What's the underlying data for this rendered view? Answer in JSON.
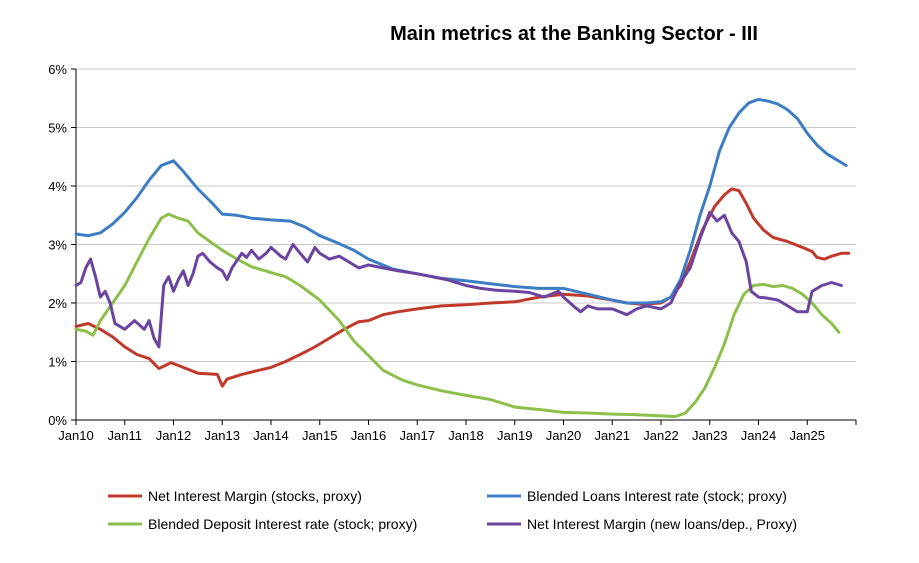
{
  "chart_data": {
    "type": "line",
    "title": "Main metrics at the Banking Sector  -  III",
    "xlabel": "",
    "ylabel": "",
    "x_ticks": [
      "Jan10",
      "Jan11",
      "Jan12",
      "Jan13",
      "Jan14",
      "Jan15",
      "Jan16",
      "Jan17",
      "Jan18",
      "Jan19",
      "Jan20",
      "Jan21",
      "Jan22",
      "Jan23",
      "Jan24",
      "Jan25"
    ],
    "y_ticks": [
      "0%",
      "1%",
      "2%",
      "3%",
      "4%",
      "5%",
      "6%"
    ],
    "xlim": [
      2010.0,
      2026.0
    ],
    "ylim": [
      0,
      6
    ],
    "grid": "horizontal",
    "legend_position": "bottom",
    "series": [
      {
        "name": "Net Interest Margin (stocks, proxy)",
        "color": "#c0392b",
        "points": [
          [
            2010.0,
            1.6
          ],
          [
            2010.25,
            1.65
          ],
          [
            2010.5,
            1.55
          ],
          [
            2010.75,
            1.42
          ],
          [
            2011.0,
            1.25
          ],
          [
            2011.25,
            1.12
          ],
          [
            2011.5,
            1.05
          ],
          [
            2011.7,
            0.88
          ],
          [
            2011.95,
            0.98
          ],
          [
            2012.2,
            0.9
          ],
          [
            2012.5,
            0.8
          ],
          [
            2012.9,
            0.78
          ],
          [
            2013.0,
            0.58
          ],
          [
            2013.1,
            0.7
          ],
          [
            2013.4,
            0.78
          ],
          [
            2013.75,
            0.85
          ],
          [
            2014.0,
            0.9
          ],
          [
            2014.3,
            1.0
          ],
          [
            2014.6,
            1.12
          ],
          [
            2014.9,
            1.25
          ],
          [
            2015.2,
            1.4
          ],
          [
            2015.5,
            1.55
          ],
          [
            2015.8,
            1.68
          ],
          [
            2016.0,
            1.7
          ],
          [
            2016.3,
            1.8
          ],
          [
            2016.6,
            1.85
          ],
          [
            2017.0,
            1.9
          ],
          [
            2017.5,
            1.95
          ],
          [
            2018.0,
            1.97
          ],
          [
            2018.5,
            2.0
          ],
          [
            2019.0,
            2.02
          ],
          [
            2019.5,
            2.1
          ],
          [
            2020.0,
            2.15
          ],
          [
            2020.5,
            2.12
          ],
          [
            2021.0,
            2.05
          ],
          [
            2021.3,
            2.0
          ],
          [
            2021.6,
            1.98
          ],
          [
            2022.0,
            2.0
          ],
          [
            2022.2,
            2.1
          ],
          [
            2022.4,
            2.3
          ],
          [
            2022.6,
            2.7
          ],
          [
            2022.85,
            3.25
          ],
          [
            2023.1,
            3.65
          ],
          [
            2023.3,
            3.85
          ],
          [
            2023.45,
            3.95
          ],
          [
            2023.6,
            3.92
          ],
          [
            2023.75,
            3.7
          ],
          [
            2023.9,
            3.45
          ],
          [
            2024.1,
            3.25
          ],
          [
            2024.3,
            3.12
          ],
          [
            2024.6,
            3.05
          ],
          [
            2024.9,
            2.95
          ],
          [
            2025.1,
            2.88
          ],
          [
            2025.2,
            2.78
          ],
          [
            2025.35,
            2.75
          ],
          [
            2025.5,
            2.8
          ],
          [
            2025.7,
            2.85
          ],
          [
            2025.85,
            2.85
          ]
        ]
      },
      {
        "name": "Blended Loans Interest rate (stock; proxy)",
        "color": "#3c7dc4",
        "points": [
          [
            2010.0,
            3.18
          ],
          [
            2010.25,
            3.15
          ],
          [
            2010.5,
            3.2
          ],
          [
            2010.75,
            3.35
          ],
          [
            2011.0,
            3.55
          ],
          [
            2011.25,
            3.8
          ],
          [
            2011.5,
            4.1
          ],
          [
            2011.75,
            4.35
          ],
          [
            2012.0,
            4.43
          ],
          [
            2012.2,
            4.25
          ],
          [
            2012.5,
            3.95
          ],
          [
            2012.8,
            3.7
          ],
          [
            2013.0,
            3.52
          ],
          [
            2013.3,
            3.5
          ],
          [
            2013.6,
            3.45
          ],
          [
            2014.0,
            3.42
          ],
          [
            2014.4,
            3.4
          ],
          [
            2014.7,
            3.3
          ],
          [
            2015.0,
            3.15
          ],
          [
            2015.3,
            3.05
          ],
          [
            2015.7,
            2.9
          ],
          [
            2016.0,
            2.75
          ],
          [
            2016.5,
            2.58
          ],
          [
            2017.0,
            2.5
          ],
          [
            2017.5,
            2.42
          ],
          [
            2018.0,
            2.38
          ],
          [
            2018.5,
            2.33
          ],
          [
            2019.0,
            2.28
          ],
          [
            2019.5,
            2.25
          ],
          [
            2020.0,
            2.25
          ],
          [
            2020.5,
            2.15
          ],
          [
            2021.0,
            2.05
          ],
          [
            2021.3,
            2.0
          ],
          [
            2021.7,
            2.0
          ],
          [
            2022.0,
            2.02
          ],
          [
            2022.2,
            2.1
          ],
          [
            2022.4,
            2.4
          ],
          [
            2022.6,
            2.9
          ],
          [
            2022.8,
            3.5
          ],
          [
            2023.0,
            4.0
          ],
          [
            2023.2,
            4.6
          ],
          [
            2023.4,
            5.0
          ],
          [
            2023.6,
            5.25
          ],
          [
            2023.8,
            5.42
          ],
          [
            2024.0,
            5.48
          ],
          [
            2024.2,
            5.45
          ],
          [
            2024.4,
            5.4
          ],
          [
            2024.6,
            5.3
          ],
          [
            2024.8,
            5.15
          ],
          [
            2025.0,
            4.9
          ],
          [
            2025.2,
            4.7
          ],
          [
            2025.4,
            4.55
          ],
          [
            2025.6,
            4.45
          ],
          [
            2025.8,
            4.35
          ]
        ]
      },
      {
        "name": "Blended Deposit Interest rate (stock; proxy)",
        "color": "#8dc04a",
        "points": [
          [
            2010.0,
            1.55
          ],
          [
            2010.2,
            1.52
          ],
          [
            2010.35,
            1.45
          ],
          [
            2010.5,
            1.7
          ],
          [
            2010.75,
            2.0
          ],
          [
            2011.0,
            2.3
          ],
          [
            2011.25,
            2.7
          ],
          [
            2011.5,
            3.1
          ],
          [
            2011.75,
            3.45
          ],
          [
            2011.9,
            3.52
          ],
          [
            2012.1,
            3.45
          ],
          [
            2012.3,
            3.4
          ],
          [
            2012.5,
            3.2
          ],
          [
            2012.75,
            3.05
          ],
          [
            2013.0,
            2.9
          ],
          [
            2013.3,
            2.75
          ],
          [
            2013.6,
            2.62
          ],
          [
            2014.0,
            2.52
          ],
          [
            2014.3,
            2.45
          ],
          [
            2014.6,
            2.3
          ],
          [
            2015.0,
            2.05
          ],
          [
            2015.4,
            1.7
          ],
          [
            2015.7,
            1.35
          ],
          [
            2016.0,
            1.1
          ],
          [
            2016.3,
            0.85
          ],
          [
            2016.7,
            0.68
          ],
          [
            2017.0,
            0.6
          ],
          [
            2017.5,
            0.5
          ],
          [
            2018.0,
            0.42
          ],
          [
            2018.5,
            0.35
          ],
          [
            2019.0,
            0.22
          ],
          [
            2019.5,
            0.18
          ],
          [
            2020.0,
            0.13
          ],
          [
            2020.5,
            0.12
          ],
          [
            2021.0,
            0.1
          ],
          [
            2021.5,
            0.09
          ],
          [
            2022.0,
            0.07
          ],
          [
            2022.3,
            0.06
          ],
          [
            2022.5,
            0.12
          ],
          [
            2022.7,
            0.3
          ],
          [
            2022.9,
            0.55
          ],
          [
            2023.1,
            0.9
          ],
          [
            2023.3,
            1.3
          ],
          [
            2023.5,
            1.8
          ],
          [
            2023.7,
            2.15
          ],
          [
            2023.9,
            2.3
          ],
          [
            2024.1,
            2.32
          ],
          [
            2024.3,
            2.28
          ],
          [
            2024.5,
            2.3
          ],
          [
            2024.7,
            2.25
          ],
          [
            2024.9,
            2.15
          ],
          [
            2025.1,
            2.0
          ],
          [
            2025.3,
            1.8
          ],
          [
            2025.5,
            1.65
          ],
          [
            2025.65,
            1.5
          ]
        ]
      },
      {
        "name": "Net Interest Margin (new loans/dep., Proxy)",
        "color": "#6a44a0",
        "points": [
          [
            2010.0,
            2.3
          ],
          [
            2010.1,
            2.35
          ],
          [
            2010.2,
            2.6
          ],
          [
            2010.3,
            2.75
          ],
          [
            2010.4,
            2.45
          ],
          [
            2010.5,
            2.1
          ],
          [
            2010.6,
            2.2
          ],
          [
            2010.7,
            2.0
          ],
          [
            2010.8,
            1.65
          ],
          [
            2011.0,
            1.55
          ],
          [
            2011.2,
            1.7
          ],
          [
            2011.4,
            1.55
          ],
          [
            2011.5,
            1.7
          ],
          [
            2011.6,
            1.4
          ],
          [
            2011.7,
            1.25
          ],
          [
            2011.8,
            2.3
          ],
          [
            2011.9,
            2.45
          ],
          [
            2012.0,
            2.2
          ],
          [
            2012.1,
            2.4
          ],
          [
            2012.2,
            2.55
          ],
          [
            2012.3,
            2.3
          ],
          [
            2012.4,
            2.5
          ],
          [
            2012.5,
            2.8
          ],
          [
            2012.6,
            2.85
          ],
          [
            2012.75,
            2.7
          ],
          [
            2012.9,
            2.6
          ],
          [
            2013.0,
            2.55
          ],
          [
            2013.1,
            2.4
          ],
          [
            2013.2,
            2.6
          ],
          [
            2013.4,
            2.85
          ],
          [
            2013.5,
            2.78
          ],
          [
            2013.6,
            2.9
          ],
          [
            2013.75,
            2.75
          ],
          [
            2013.9,
            2.85
          ],
          [
            2014.0,
            2.95
          ],
          [
            2014.2,
            2.8
          ],
          [
            2014.3,
            2.75
          ],
          [
            2014.45,
            3.0
          ],
          [
            2014.6,
            2.85
          ],
          [
            2014.75,
            2.7
          ],
          [
            2014.9,
            2.95
          ],
          [
            2015.0,
            2.85
          ],
          [
            2015.2,
            2.75
          ],
          [
            2015.4,
            2.8
          ],
          [
            2015.6,
            2.7
          ],
          [
            2015.8,
            2.6
          ],
          [
            2016.0,
            2.65
          ],
          [
            2016.3,
            2.6
          ],
          [
            2016.6,
            2.55
          ],
          [
            2017.0,
            2.5
          ],
          [
            2017.3,
            2.45
          ],
          [
            2017.6,
            2.4
          ],
          [
            2018.0,
            2.3
          ],
          [
            2018.3,
            2.25
          ],
          [
            2018.6,
            2.22
          ],
          [
            2019.0,
            2.2
          ],
          [
            2019.3,
            2.18
          ],
          [
            2019.6,
            2.1
          ],
          [
            2019.9,
            2.2
          ],
          [
            2020.0,
            2.1
          ],
          [
            2020.2,
            1.95
          ],
          [
            2020.35,
            1.85
          ],
          [
            2020.5,
            1.95
          ],
          [
            2020.7,
            1.9
          ],
          [
            2021.0,
            1.9
          ],
          [
            2021.3,
            1.8
          ],
          [
            2021.5,
            1.9
          ],
          [
            2021.7,
            1.95
          ],
          [
            2022.0,
            1.9
          ],
          [
            2022.2,
            2.0
          ],
          [
            2022.4,
            2.35
          ],
          [
            2022.6,
            2.6
          ],
          [
            2022.8,
            3.1
          ],
          [
            2023.0,
            3.55
          ],
          [
            2023.15,
            3.4
          ],
          [
            2023.3,
            3.5
          ],
          [
            2023.45,
            3.2
          ],
          [
            2023.6,
            3.05
          ],
          [
            2023.75,
            2.7
          ],
          [
            2023.85,
            2.2
          ],
          [
            2024.0,
            2.1
          ],
          [
            2024.2,
            2.08
          ],
          [
            2024.4,
            2.05
          ],
          [
            2024.6,
            1.95
          ],
          [
            2024.8,
            1.85
          ],
          [
            2025.0,
            1.85
          ],
          [
            2025.1,
            2.2
          ],
          [
            2025.3,
            2.3
          ],
          [
            2025.5,
            2.35
          ],
          [
            2025.7,
            2.3
          ]
        ]
      }
    ]
  }
}
